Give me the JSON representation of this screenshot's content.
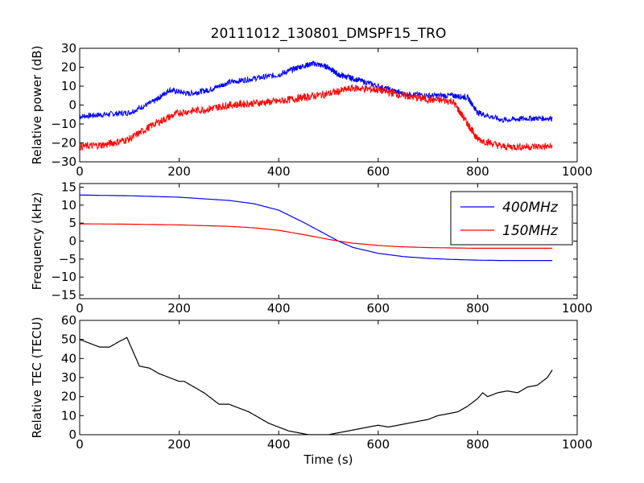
{
  "title": "20111012_130801_DMSPF15_TRO",
  "chart_data": [
    {
      "type": "line",
      "ylabel": "Relative power (dB)",
      "xlabel": "",
      "xlim": [
        0,
        1000
      ],
      "ylim": [
        -30,
        30
      ],
      "x_ticks": [
        "0",
        "200",
        "400",
        "600",
        "800",
        "1000"
      ],
      "y_ticks": [
        "−30",
        "−20",
        "−10",
        "0",
        "10",
        "20",
        "30"
      ],
      "y_tick_values": [
        -30,
        -20,
        -10,
        0,
        10,
        20,
        30
      ],
      "x_tick_values": [
        0,
        200,
        400,
        600,
        800,
        1000
      ],
      "noise": [
        1.5,
        2.0
      ],
      "series": [
        {
          "color": "#0000ff",
          "x": [
            0,
            50,
            100,
            150,
            180,
            220,
            260,
            300,
            350,
            400,
            440,
            470,
            500,
            520,
            550,
            600,
            650,
            700,
            750,
            780,
            800,
            850,
            900,
            950
          ],
          "y": [
            -6,
            -5,
            -4,
            2,
            8,
            6,
            8,
            12,
            14,
            16,
            20,
            22,
            20,
            16,
            14,
            10,
            6,
            5,
            5,
            4,
            -4,
            -8,
            -7,
            -7
          ]
        },
        {
          "color": "#ff0000",
          "x": [
            0,
            50,
            100,
            150,
            200,
            260,
            300,
            350,
            400,
            450,
            500,
            550,
            600,
            650,
            700,
            750,
            780,
            800,
            850,
            900,
            950
          ],
          "y": [
            -22,
            -21,
            -18,
            -10,
            -4,
            -2,
            0,
            1,
            2,
            4,
            6,
            9,
            8,
            5,
            3,
            2,
            -10,
            -18,
            -22,
            -22,
            -22
          ]
        }
      ]
    },
    {
      "type": "line",
      "ylabel": "Frequency (kHz)",
      "xlabel": "",
      "xlim": [
        0,
        1000
      ],
      "ylim": [
        -16,
        16
      ],
      "x_ticks": [
        "0",
        "200",
        "400",
        "600",
        "800",
        "1000"
      ],
      "y_ticks": [
        "−15",
        "−10",
        "−5",
        "0",
        "5",
        "10",
        "15"
      ],
      "y_tick_values": [
        -15,
        -10,
        -5,
        0,
        5,
        10,
        15
      ],
      "x_tick_values": [
        0,
        200,
        400,
        600,
        800,
        1000
      ],
      "legend_position": "top-right",
      "series": [
        {
          "name": "400MHz",
          "color": "#0000ff",
          "x": [
            0,
            100,
            200,
            300,
            350,
            400,
            450,
            500,
            520,
            550,
            600,
            650,
            700,
            750,
            800,
            850,
            900,
            950
          ],
          "y": [
            12.8,
            12.6,
            12.2,
            11.3,
            10.4,
            8.6,
            5.2,
            1.5,
            0,
            -1.8,
            -3.4,
            -4.3,
            -4.8,
            -5.1,
            -5.3,
            -5.4,
            -5.4,
            -5.4
          ]
        },
        {
          "name": "150MHz",
          "color": "#ff0000",
          "x": [
            0,
            100,
            200,
            300,
            350,
            400,
            450,
            500,
            520,
            550,
            600,
            650,
            700,
            750,
            800,
            850,
            900,
            950
          ],
          "y": [
            4.8,
            4.7,
            4.5,
            4.1,
            3.7,
            3.0,
            1.8,
            0.5,
            0,
            -0.6,
            -1.2,
            -1.6,
            -1.8,
            -1.9,
            -2.0,
            -2.0,
            -2.0,
            -2.0
          ]
        }
      ]
    },
    {
      "type": "line",
      "ylabel": "Relative TEC (TECU)",
      "xlabel": "Time (s)",
      "xlim": [
        0,
        1000
      ],
      "ylim": [
        0,
        60
      ],
      "x_ticks": [
        "0",
        "200",
        "400",
        "600",
        "800",
        "1000"
      ],
      "y_ticks": [
        "0",
        "10",
        "20",
        "30",
        "40",
        "50",
        "60"
      ],
      "y_tick_values": [
        0,
        10,
        20,
        30,
        40,
        50,
        60
      ],
      "x_tick_values": [
        0,
        200,
        400,
        600,
        800,
        1000
      ],
      "series": [
        {
          "color": "#000000",
          "x": [
            0,
            20,
            40,
            60,
            80,
            95,
            100,
            110,
            120,
            140,
            160,
            180,
            200,
            210,
            230,
            250,
            270,
            280,
            300,
            320,
            340,
            360,
            380,
            400,
            420,
            440,
            460,
            480,
            500,
            520,
            540,
            560,
            580,
            600,
            620,
            640,
            660,
            680,
            700,
            720,
            740,
            760,
            780,
            800,
            810,
            820,
            840,
            860,
            880,
            900,
            920,
            940,
            950
          ],
          "y": [
            50,
            48,
            46,
            46,
            49,
            51,
            48,
            42,
            36,
            35,
            32,
            30,
            28,
            28,
            25,
            22,
            18,
            16,
            16,
            14,
            12,
            9,
            6,
            4,
            2,
            1,
            0,
            0,
            0,
            1,
            2,
            3,
            4,
            5,
            4,
            5,
            6,
            7,
            8,
            10,
            11,
            12,
            15,
            19,
            22,
            20,
            22,
            23,
            22,
            25,
            26,
            30,
            34
          ]
        }
      ]
    }
  ]
}
